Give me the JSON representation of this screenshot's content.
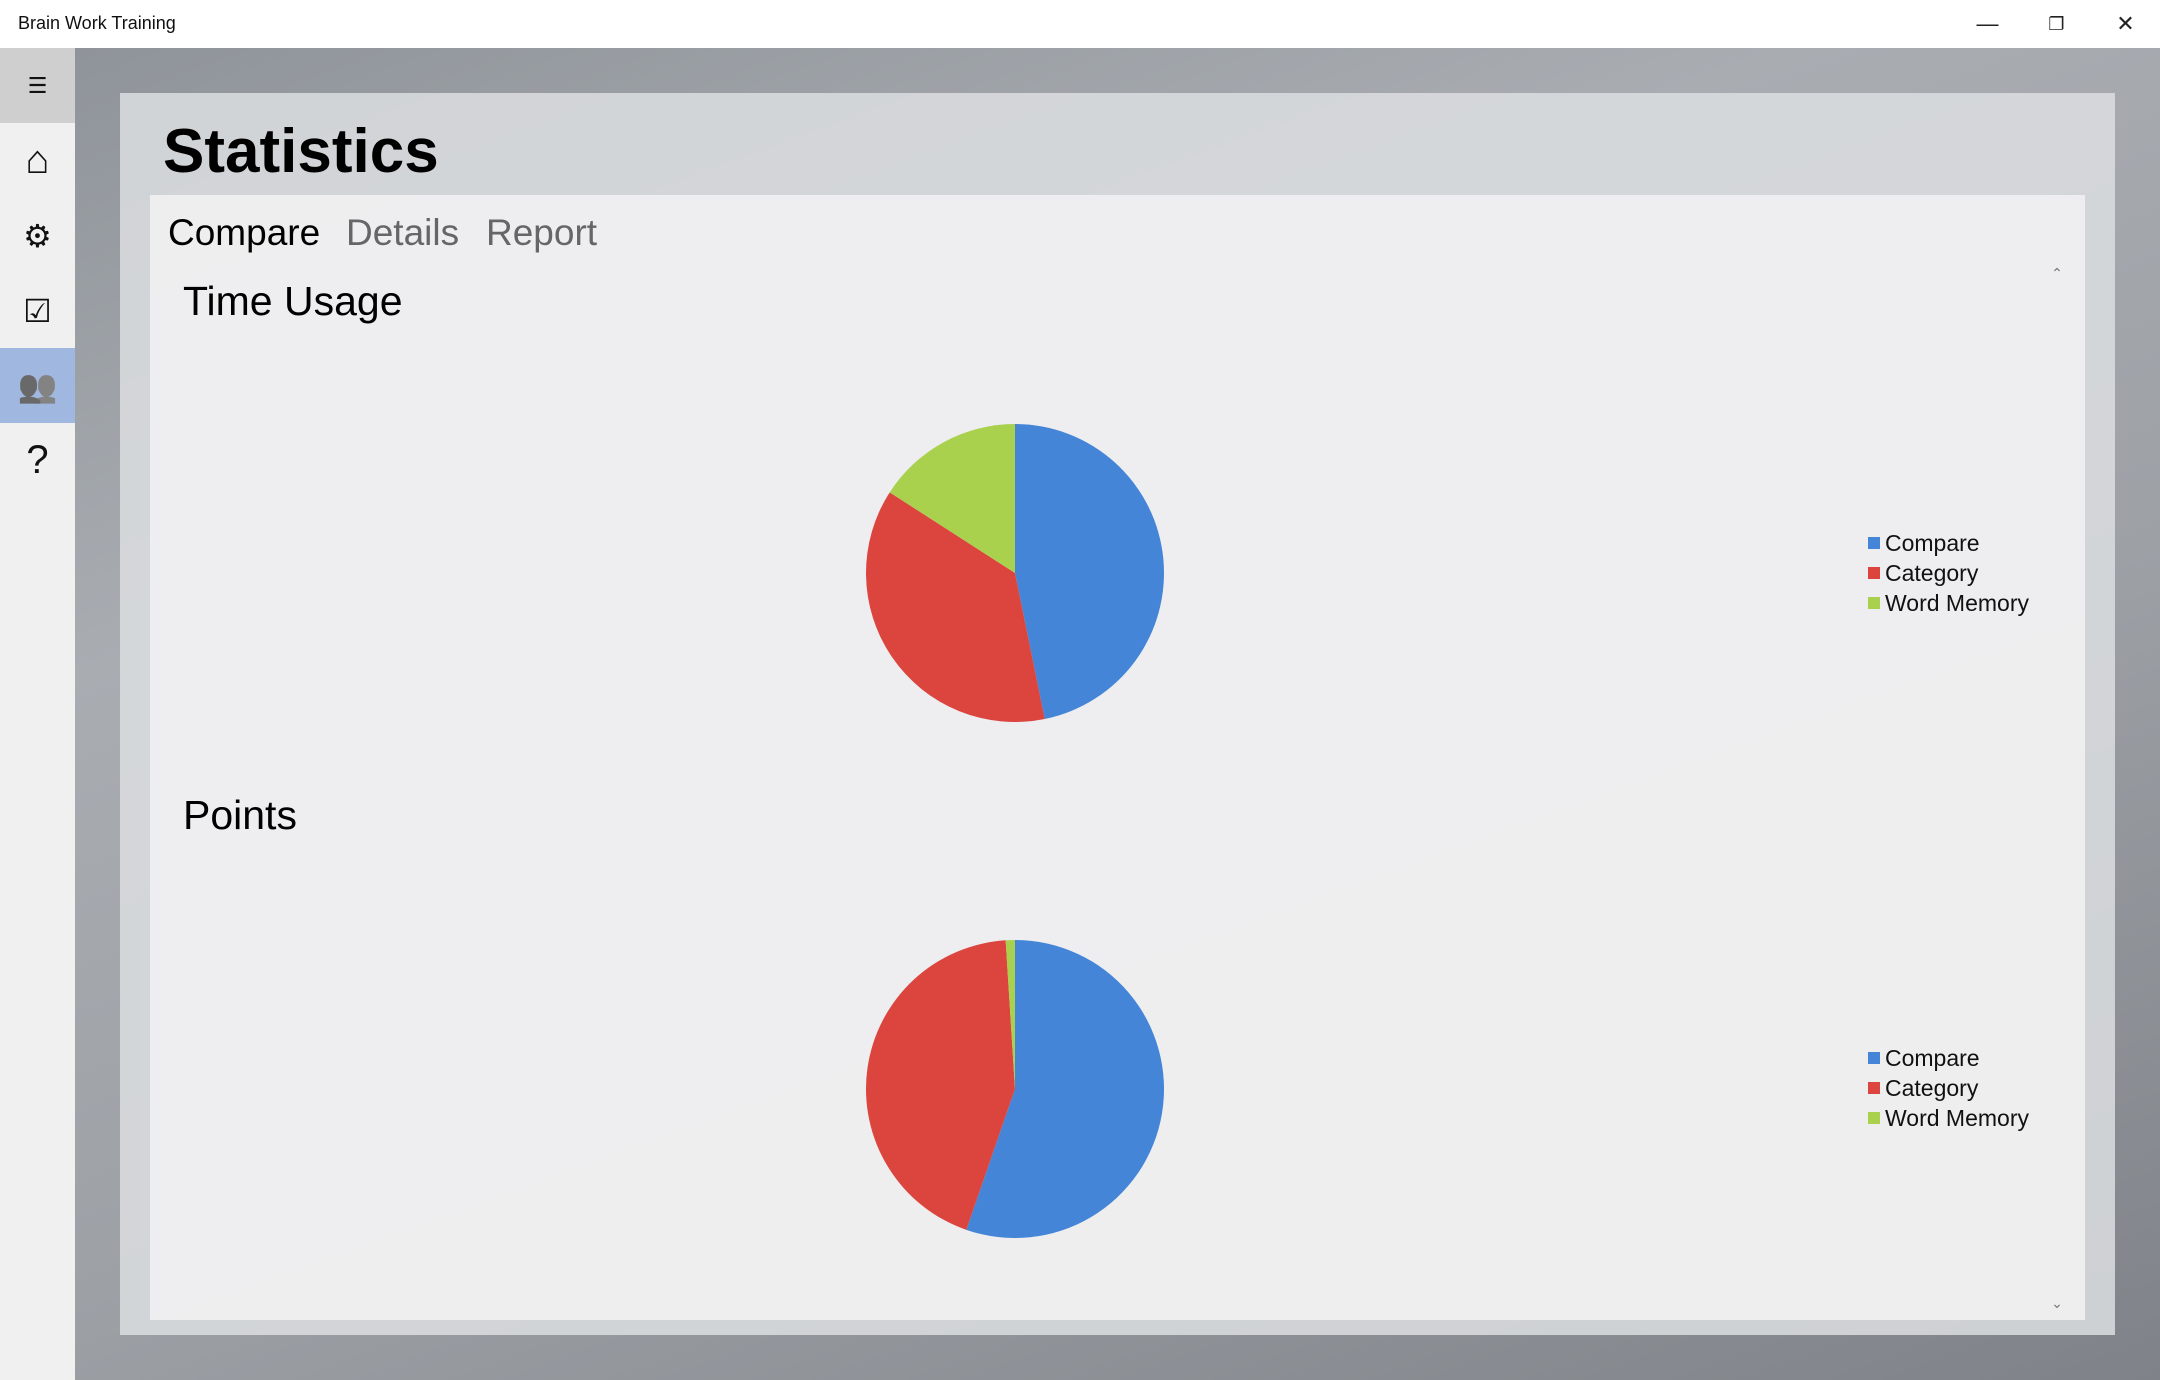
{
  "window": {
    "title": "Brain Work Training",
    "minimize": "—",
    "restore": "❐",
    "close": "✕"
  },
  "sidebar": {
    "items": [
      {
        "name": "menu",
        "glyph": "☰"
      },
      {
        "name": "home",
        "glyph": "⌂"
      },
      {
        "name": "settings",
        "glyph": "⚙"
      },
      {
        "name": "tasks",
        "glyph": "☑"
      },
      {
        "name": "statistics",
        "glyph": "👥",
        "active": true
      },
      {
        "name": "help",
        "glyph": "?"
      }
    ]
  },
  "page": {
    "title": "Statistics"
  },
  "tabs": [
    {
      "label": "Compare",
      "selected": true
    },
    {
      "label": "Details"
    },
    {
      "label": "Report"
    }
  ],
  "colors": {
    "Compare": "#4585d8",
    "Category": "#dc443e",
    "Word Memory": "#aad14e"
  },
  "chart_data": [
    {
      "type": "pie",
      "title": "Time Usage",
      "categories": [
        "Compare",
        "Category",
        "Word Memory"
      ],
      "values": [
        46.8,
        37.3,
        15.9
      ],
      "legend": "right"
    },
    {
      "type": "pie",
      "title": "Points",
      "categories": [
        "Compare",
        "Category",
        "Word Memory"
      ],
      "values": [
        55.3,
        43.7,
        1.0
      ],
      "legend": "right"
    }
  ],
  "scrollbar": {
    "up": "⌃",
    "down": "⌄"
  }
}
